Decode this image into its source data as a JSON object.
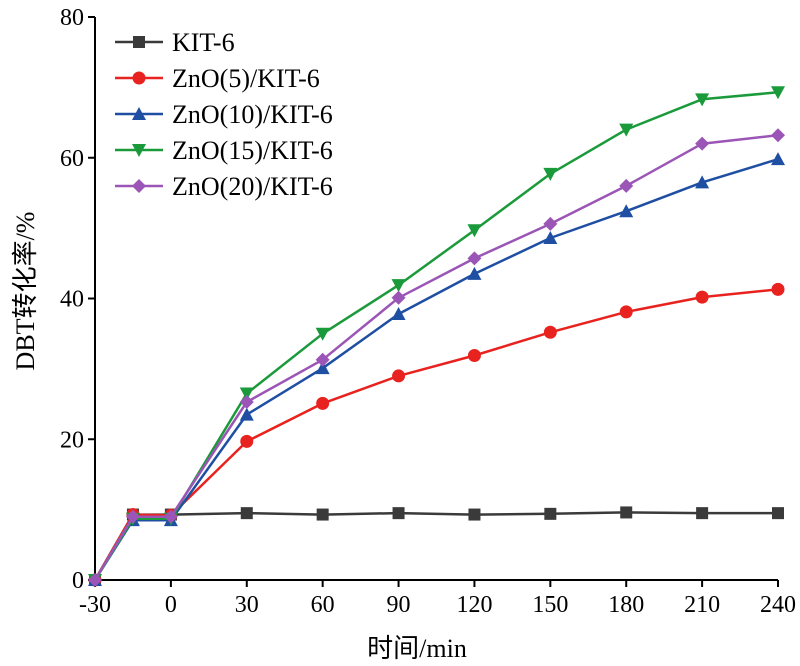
{
  "chart_data": {
    "type": "line",
    "xlabel": "时间/min",
    "ylabel": "DBT转化率/%",
    "xlim": [
      -30,
      240
    ],
    "ylim": [
      0,
      80
    ],
    "x_ticks": [
      -30,
      0,
      30,
      60,
      90,
      120,
      150,
      180,
      210,
      240
    ],
    "y_ticks": [
      0,
      20,
      40,
      60,
      80
    ],
    "legend_position": "top-left",
    "grid": false,
    "x": [
      -30,
      -15,
      0,
      30,
      60,
      90,
      120,
      150,
      180,
      210,
      240
    ],
    "series": [
      {
        "name": "KIT-6",
        "color": "#3a3a3a",
        "marker": "square",
        "values": [
          0,
          9.3,
          9.3,
          9.5,
          9.3,
          9.5,
          9.3,
          9.4,
          9.6,
          9.5,
          9.5
        ]
      },
      {
        "name": "ZnO(5)/KIT-6",
        "color": "#e8231f",
        "marker": "circle",
        "values": [
          0,
          9.3,
          9.2,
          19.7,
          25.1,
          29.0,
          31.9,
          35.2,
          38.1,
          40.2,
          41.3
        ]
      },
      {
        "name": "ZnO(10)/KIT-6",
        "color": "#1f4fa3",
        "marker": "triangle-up",
        "values": [
          0,
          8.5,
          8.5,
          23.5,
          30.1,
          37.8,
          43.5,
          48.6,
          52.4,
          56.5,
          59.8
        ]
      },
      {
        "name": "ZnO(15)/KIT-6",
        "color": "#1a9a3a",
        "marker": "triangle-down",
        "values": [
          0,
          8.7,
          8.7,
          26.5,
          35.0,
          41.9,
          49.7,
          57.7,
          64.0,
          68.3,
          69.3
        ]
      },
      {
        "name": "ZnO(20)/KIT-6",
        "color": "#9b55b6",
        "marker": "diamond",
        "values": [
          0,
          9.0,
          9.0,
          25.3,
          31.3,
          40.1,
          45.7,
          50.6,
          56.0,
          62.0,
          63.2
        ]
      }
    ]
  }
}
